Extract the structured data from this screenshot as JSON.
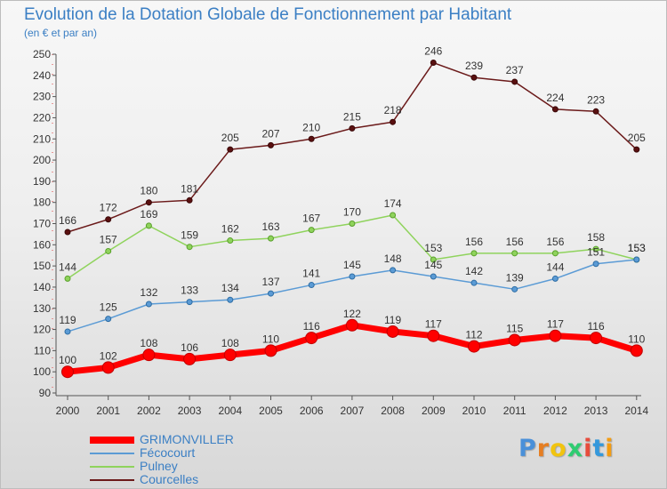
{
  "page": {
    "title": "Evolution de la Dotation Globale de Fonctionnement par Habitant",
    "subtitle": "(en € et par an)"
  },
  "brand": {
    "logo_text": "Proxiti",
    "logo_colors": [
      "#4a90d9",
      "#e67e22",
      "#f1c40f",
      "#2ecc71",
      "#e74c3c",
      "#3498db",
      "#f39c12"
    ]
  },
  "chart_data": {
    "type": "line",
    "title": "Evolution de la Dotation Globale de Fonctionnement par Habitant",
    "subtitle": "(en € et par an)",
    "x": [
      "2000",
      "2001",
      "2002",
      "2003",
      "2004",
      "2005",
      "2006",
      "2007",
      "2008",
      "2009",
      "2010",
      "2011",
      "2012",
      "2013",
      "2014"
    ],
    "y_ticks": [
      90,
      100,
      110,
      120,
      130,
      140,
      150,
      160,
      170,
      180,
      190,
      200,
      210,
      220,
      230,
      240,
      250
    ],
    "ylim": [
      90,
      250
    ],
    "grid": false,
    "legend_position": "bottom-left",
    "series": [
      {
        "name": "Courcelles",
        "color": "#6b1a1a",
        "values": [
          166,
          172,
          180,
          181,
          205,
          207,
          210,
          215,
          218,
          246,
          239,
          237,
          224,
          223,
          205
        ]
      },
      {
        "name": "Pulney",
        "color": "#8fd35c",
        "values": [
          144,
          157,
          169,
          159,
          162,
          163,
          167,
          170,
          174,
          153,
          156,
          156,
          156,
          158,
          153
        ]
      },
      {
        "name": "Fécocourt",
        "color": "#5b9bd5",
        "values": [
          119,
          125,
          132,
          133,
          134,
          137,
          141,
          145,
          148,
          145,
          142,
          139,
          144,
          151,
          153
        ]
      },
      {
        "name": "GRIMONVILLER",
        "color": "#ff0000",
        "values": [
          100,
          102,
          108,
          106,
          108,
          110,
          116,
          122,
          119,
          117,
          112,
          115,
          117,
          116,
          110
        ]
      }
    ],
    "legend_order": [
      "GRIMONVILLER",
      "Fécocourt",
      "Pulney",
      "Courcelles"
    ]
  }
}
